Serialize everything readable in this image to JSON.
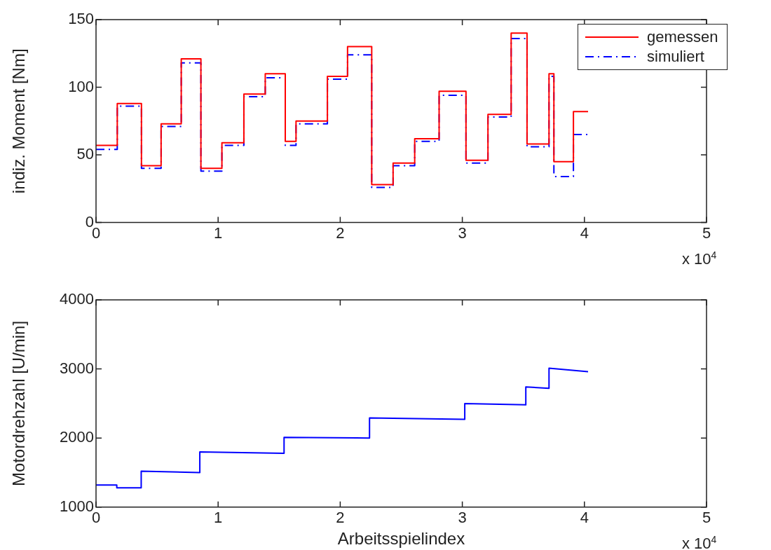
{
  "chart_data": [
    {
      "type": "line",
      "ylabel": "indiz. Moment [Nm]",
      "annotations": [
        "x 10$^{4}$"
      ],
      "x": [
        0,
        0.174,
        0.174,
        0.372,
        0.372,
        0.533,
        0.533,
        0.698,
        0.698,
        0.859,
        0.859,
        1.031,
        1.031,
        1.211,
        1.211,
        1.386,
        1.386,
        1.55,
        1.55,
        1.638,
        1.638,
        1.895,
        1.895,
        2.06,
        2.06,
        2.258,
        2.258,
        2.433,
        2.433,
        2.61,
        2.61,
        2.81,
        2.81,
        3.03,
        3.03,
        3.21,
        3.21,
        3.4,
        3.4,
        3.53,
        3.53,
        3.71,
        3.71,
        3.75,
        3.75,
        3.91,
        3.91,
        4.03
      ],
      "series": [
        {
          "name": "gemessen",
          "color": "#ff0000",
          "line_style": "solid",
          "values": [
            57,
            57,
            88,
            88,
            42,
            42,
            73,
            73,
            121,
            121,
            40,
            40,
            59,
            59,
            95,
            95,
            110,
            110,
            60,
            60,
            75,
            75,
            108,
            108,
            130,
            130,
            28,
            28,
            44,
            44,
            62,
            62,
            97,
            97,
            46,
            46,
            80,
            80,
            140,
            140,
            58,
            58,
            110,
            110,
            45,
            45,
            82,
            82
          ]
        },
        {
          "name": "simuliert",
          "color": "#0000ff",
          "line_style": "dashed",
          "values": [
            54,
            54,
            86,
            86,
            40,
            40,
            71,
            71,
            118,
            118,
            38,
            38,
            57,
            57,
            93,
            93,
            107,
            107,
            57,
            57,
            73,
            73,
            106,
            106,
            124,
            124,
            26,
            26,
            42,
            42,
            60,
            60,
            94,
            94,
            44,
            44,
            78,
            78,
            136,
            136,
            56,
            56,
            108,
            108,
            34,
            34,
            65,
            65
          ]
        }
      ],
      "xlim": [
        0,
        5
      ],
      "xticks": [
        0,
        1,
        2,
        3,
        4,
        5
      ],
      "ylim": [
        0,
        150
      ],
      "yticks": [
        0,
        50,
        100,
        150
      ],
      "grid": false,
      "legend": "top right"
    },
    {
      "type": "line",
      "xlabel": "Arbeitsspielindex",
      "ylabel": "Motordrehzahl [U/min]",
      "annotations": [
        "x 10$^{4}$"
      ],
      "x": [
        0,
        0.17,
        0.17,
        0.37,
        0.37,
        0.85,
        0.85,
        1.54,
        1.54,
        2.24,
        2.24,
        3.02,
        3.02,
        3.52,
        3.52,
        3.71,
        3.71,
        4.03
      ],
      "series": [
        {
          "color": "#0000ff",
          "values": [
            1320,
            1320,
            1280,
            1280,
            1520,
            1500,
            1800,
            1780,
            2010,
            2000,
            2290,
            2270,
            2500,
            2480,
            2740,
            2720,
            3010,
            2960
          ]
        }
      ],
      "xlim": [
        0,
        5
      ],
      "xticks": [
        0,
        1,
        2,
        3,
        4,
        5
      ],
      "ylim": [
        1000,
        4000
      ],
      "yticks": [
        1000,
        2000,
        3000,
        4000
      ],
      "grid": false,
      "legend": false
    }
  ]
}
